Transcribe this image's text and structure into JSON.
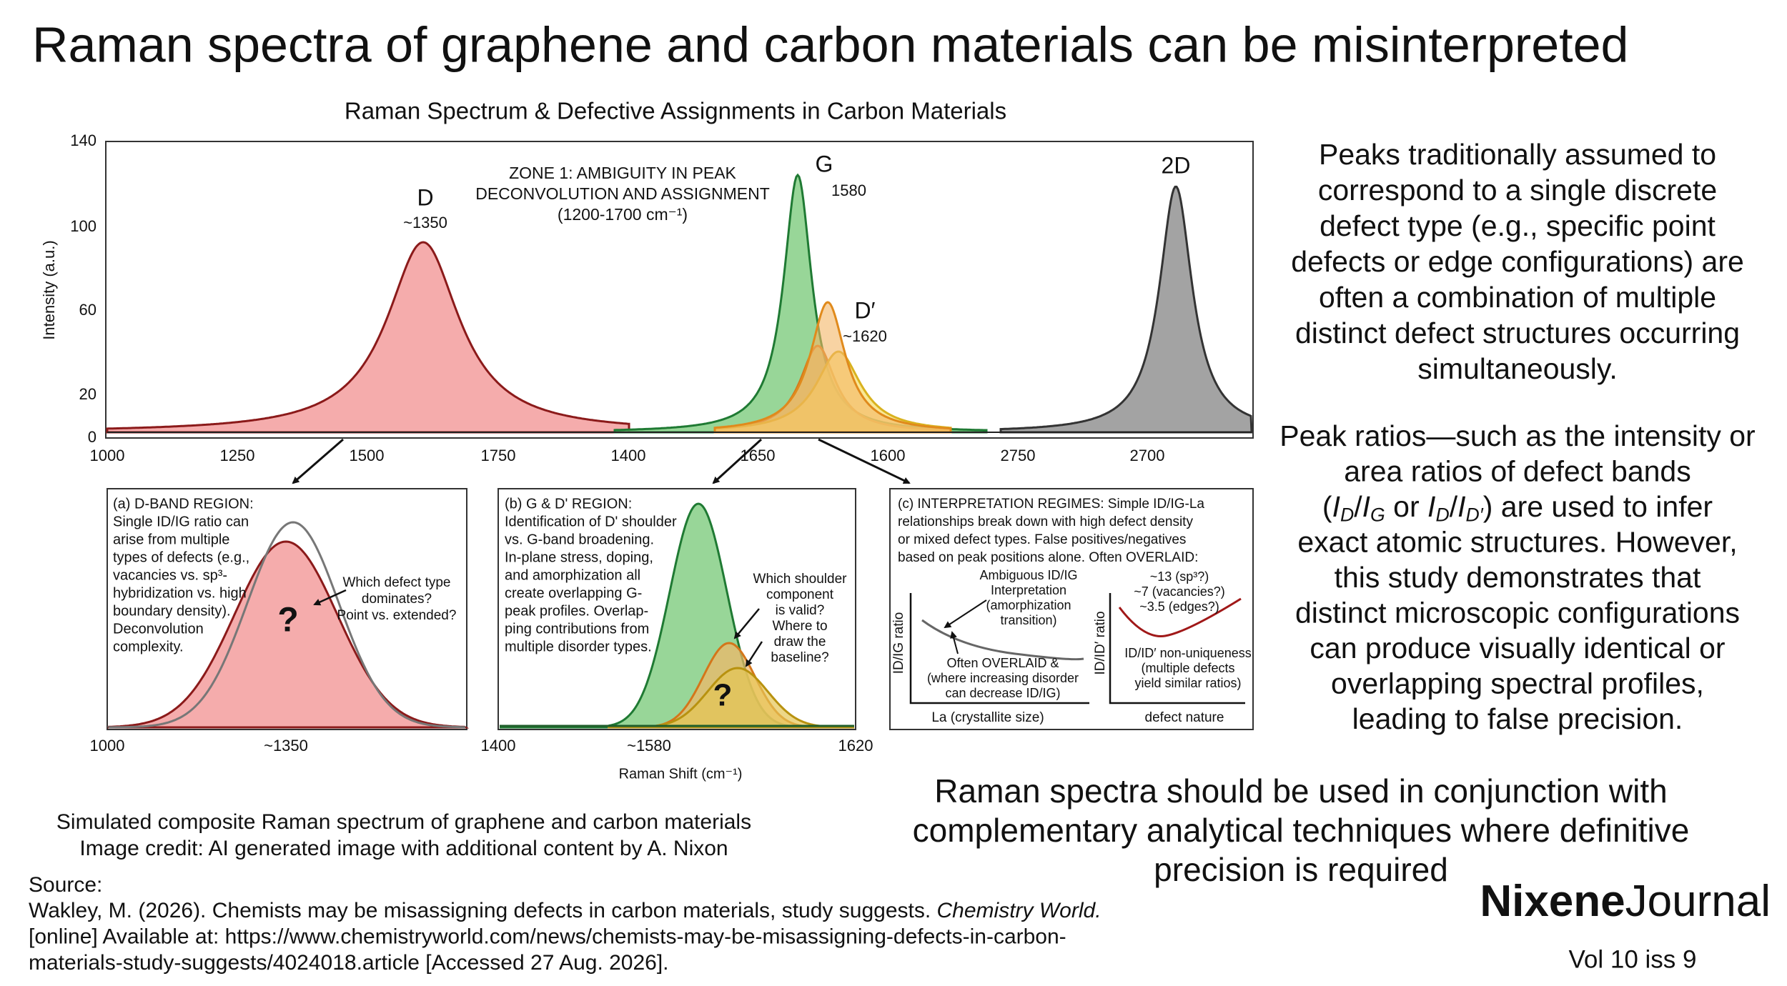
{
  "header": {
    "title": "Raman spectra of graphene and carbon materials can be misinterpreted"
  },
  "figure": {
    "title": "Raman Spectrum & Defective Assignments in Carbon Materials",
    "y_axis_label": "Intensity (a.u.)",
    "y_ticks": [
      "140",
      "100",
      "60",
      "20",
      "0"
    ],
    "x_ticks": [
      "1000",
      "1250",
      "1500",
      "1750",
      "1400",
      "1650",
      "1600",
      "2750",
      "2700"
    ],
    "zone_label": [
      "ZONE 1: AMBIGUITY IN PEAK",
      "DECONVOLUTION AND ASSIGNMENT",
      "(1200-1700 cm⁻¹)"
    ],
    "peaks": [
      {
        "name": "D",
        "position": "~1350"
      },
      {
        "name": "G",
        "position": "1580"
      },
      {
        "name": "D′",
        "position": "~1620"
      },
      {
        "name": "2D"
      }
    ],
    "panels": [
      {
        "text": [
          "(a) D-BAND REGION:",
          "Single ID/IG ratio can",
          "arise from multiple",
          "types of defects (e.g.,",
          "vacancies vs. sp³-",
          "hybridization vs. high",
          "boundary density).",
          "Deconvolution",
          "complexity."
        ],
        "callout": [
          "Which defect type",
          "dominates?",
          "Point vs. extended?"
        ],
        "mark": "?"
      },
      {
        "text": [
          "(b) G & D' REGION:",
          "Identification of D' shoulder",
          "vs. G-band broadening.",
          "In-plane stress, doping,",
          "and amorphization all",
          "create overlapping G-",
          "peak profiles. Overlap-",
          "ping contributions from",
          "multiple disorder types."
        ],
        "callout": [
          "Which shoulder",
          "component",
          "is valid?",
          "Where to",
          "draw the",
          "baseline?"
        ],
        "mark": "?"
      },
      {
        "text": [
          "(c) INTERPRETATION REGIMES: Simple ID/IG-La",
          "relationships break down with high defect density",
          "or mixed defect types. False positives/negatives",
          "based on peak positions alone. Often OVERLAID:"
        ],
        "left": {
          "note": [
            "Ambiguous ID/IG",
            "Interpretation",
            "(amorphization",
            "transition)"
          ],
          "note2": [
            "Often OVERLAID &",
            "(where increasing disorder",
            "can decrease ID/IG)"
          ],
          "y_label": "ID/IG ratio",
          "x_label": "La (crystallite size)"
        },
        "right": {
          "note": [
            "~13 (sp³?)",
            "~7 (vacancies?)",
            "~3.5 (edges?)"
          ],
          "note2": [
            "ID/ID′ non-uniqueness",
            "(multiple defects",
            "yield similar ratios)"
          ],
          "y_label": "ID/ID′ ratio",
          "x_label": "defect nature"
        }
      }
    ],
    "panel_ticks": [
      "1000",
      "~1350",
      "1400",
      "~1580",
      "1620"
    ],
    "x_axis_label": "Raman Shift (cm⁻¹)",
    "caption": [
      "Simulated composite Raman spectrum of graphene and carbon materials",
      "Image credit: AI generated image with additional content by A. Nixon"
    ]
  },
  "body": {
    "paragraph1": [
      "Peaks traditionally assumed to",
      "correspond to a single discrete",
      "defect type (e.g., specific point",
      "defects or edge configurations) are",
      "often a combination of multiple",
      "distinct defect structures occurring",
      "simultaneously."
    ],
    "paragraph2": [
      "Peak ratios—such as the intensity or",
      "area ratios of defect bands",
      [
        {
          "t": "("
        },
        {
          "t": "I",
          "sub": "D"
        },
        {
          "t": "/"
        },
        {
          "t": "I",
          "sub": "G"
        },
        {
          "t": " or "
        },
        {
          "t": "I",
          "sub": "D"
        },
        {
          "t": "/"
        },
        {
          "t": "I",
          "sub": "D′"
        },
        {
          "t": ") are used to infer"
        }
      ],
      "exact atomic structures.  However,",
      "this study demonstrates that",
      "distinct microscopic configurations",
      "can produce visually identical or",
      "overlapping spectral profiles,",
      "leading to false precision."
    ],
    "conclusion": [
      "Raman spectra should be used in conjunction with",
      "complementary analytical techniques where definitive",
      "precision is required"
    ]
  },
  "source": {
    "label": "Source:",
    "lines": [
      [
        {
          "t": "Wakley, M. (2026). Chemists may be misassigning defects in carbon materials, study suggests. "
        },
        {
          "t": "Chemistry World.",
          "italic": true
        }
      ],
      "[online] Available at: https://www.chemistryworld.com/news/chemists-may-be-misassigning-defects-in-carbon-",
      "materials-study-suggests/4024018.article [Accessed 27 Aug. 2026]."
    ]
  },
  "brand": {
    "name_bold": "Nixene",
    "name_light": "Journal",
    "issue": "Vol 10  iss 9"
  }
}
